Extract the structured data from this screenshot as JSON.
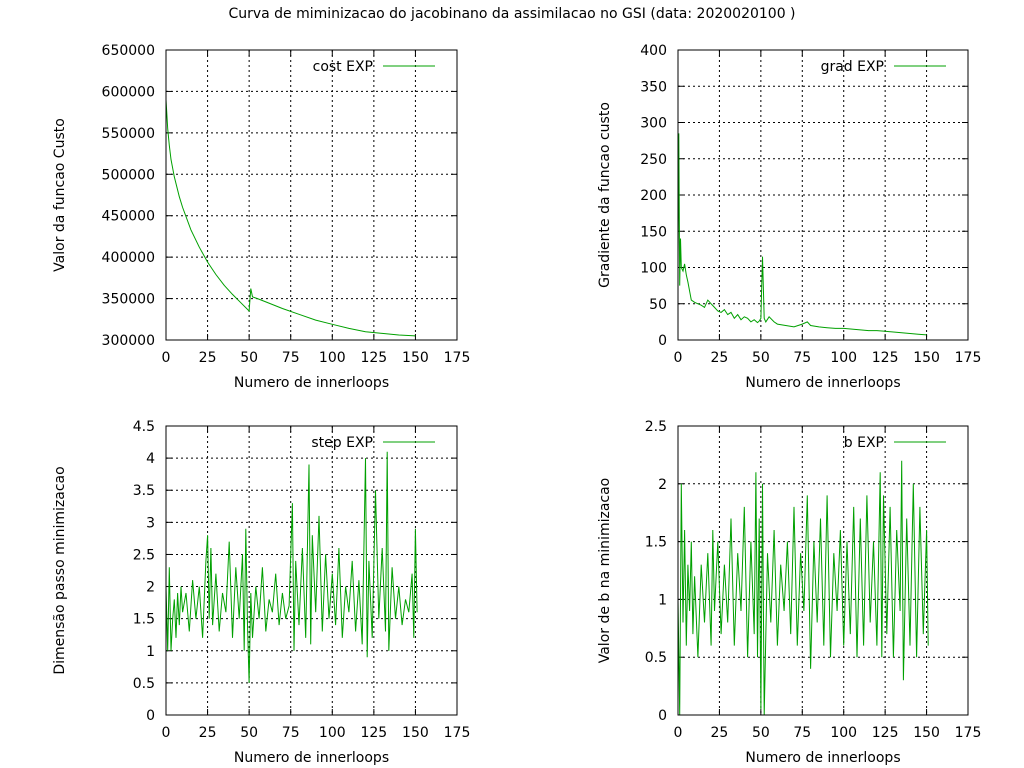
{
  "title": "Curva de miminizacao do jacobinano da assimilacao no GSI (data: 2020020100 )",
  "colors": {
    "series": "#00a000",
    "grid": "#000000",
    "axis": "#000000"
  },
  "chart_data": [
    {
      "type": "line",
      "name": "cost",
      "legend": "cost EXP",
      "legend_position": "top-right",
      "xlabel": "Numero de innerloops",
      "ylabel": "Valor da funcao Custo",
      "xlim": [
        0,
        175
      ],
      "ylim": [
        300000,
        650000
      ],
      "xticks": [
        0,
        25,
        50,
        75,
        100,
        125,
        150,
        175
      ],
      "xtick_labels": [
        "0",
        "25",
        "50",
        "75",
        "100",
        "125",
        "150",
        "175"
      ],
      "yticks": [
        300000,
        350000,
        400000,
        450000,
        500000,
        550000,
        600000,
        650000
      ],
      "ytick_labels": [
        "300000",
        "350000",
        "400000",
        "450000",
        "500000",
        "550000",
        "600000",
        "650000"
      ],
      "grid": true,
      "x": [
        0,
        1,
        2,
        3,
        5,
        8,
        10,
        15,
        20,
        25,
        30,
        35,
        40,
        45,
        50,
        51,
        52,
        55,
        60,
        70,
        80,
        90,
        100,
        110,
        120,
        130,
        140,
        150
      ],
      "y": [
        590000,
        555000,
        535000,
        518000,
        497000,
        473000,
        460000,
        433000,
        412000,
        394000,
        379000,
        366000,
        355000,
        345000,
        335000,
        362000,
        352000,
        350000,
        346000,
        338000,
        331000,
        324000,
        319000,
        314000,
        310000,
        308000,
        306000,
        305000
      ]
    },
    {
      "type": "line",
      "name": "grad",
      "legend": "grad EXP",
      "legend_position": "top-right",
      "xlabel": "Numero de innerloops",
      "ylabel": "Gradiente da funcao custo",
      "xlim": [
        0,
        175
      ],
      "ylim": [
        0,
        400
      ],
      "xticks": [
        0,
        25,
        50,
        75,
        100,
        125,
        150,
        175
      ],
      "xtick_labels": [
        "0",
        "25",
        "50",
        "75",
        "100",
        "125",
        "150",
        "175"
      ],
      "yticks": [
        0,
        50,
        100,
        150,
        200,
        250,
        300,
        350,
        400
      ],
      "ytick_labels": [
        "0",
        "50",
        "100",
        "150",
        "200",
        "250",
        "300",
        "350",
        "400"
      ],
      "grid": true,
      "x": [
        0,
        0.5,
        1,
        1.5,
        2,
        3,
        4,
        5,
        6,
        8,
        10,
        12,
        14,
        16,
        18,
        20,
        22,
        24,
        26,
        28,
        30,
        32,
        34,
        36,
        38,
        40,
        42,
        44,
        46,
        48,
        49,
        50,
        51,
        52,
        53,
        55,
        58,
        60,
        65,
        70,
        75,
        78,
        80,
        85,
        90,
        95,
        100,
        105,
        110,
        115,
        120,
        125,
        130,
        135,
        140,
        145,
        150
      ],
      "y": [
        100,
        285,
        75,
        140,
        100,
        95,
        105,
        90,
        80,
        55,
        52,
        50,
        48,
        45,
        55,
        50,
        45,
        40,
        38,
        42,
        35,
        38,
        30,
        35,
        28,
        32,
        30,
        25,
        28,
        24,
        26,
        30,
        115,
        30,
        25,
        32,
        25,
        22,
        20,
        18,
        22,
        25,
        20,
        18,
        17,
        16,
        16,
        15,
        14,
        13,
        13,
        12,
        11,
        10,
        9,
        8,
        7
      ]
    },
    {
      "type": "line",
      "name": "step",
      "legend": "step EXP",
      "legend_position": "top-right",
      "xlabel": "Numero de innerloops",
      "ylabel": "Dimensão passo minimizacao",
      "xlim": [
        0,
        175
      ],
      "ylim": [
        0,
        4.5
      ],
      "xticks": [
        0,
        25,
        50,
        75,
        100,
        125,
        150,
        175
      ],
      "xtick_labels": [
        "0",
        "25",
        "50",
        "75",
        "100",
        "125",
        "150",
        "175"
      ],
      "yticks": [
        0,
        0.5,
        1,
        1.5,
        2,
        2.5,
        3,
        3.5,
        4,
        4.5
      ],
      "ytick_labels": [
        "0",
        "0.5",
        "1",
        "1.5",
        "2",
        "2.5",
        "3",
        "3.5",
        "4",
        "4.5"
      ],
      "grid": true,
      "x": [
        0,
        1,
        2,
        3,
        4,
        5,
        6,
        7,
        8,
        9,
        10,
        12,
        14,
        16,
        18,
        20,
        22,
        24,
        25,
        26,
        27,
        28,
        30,
        32,
        34,
        36,
        38,
        40,
        42,
        44,
        46,
        47,
        48,
        49,
        50,
        51,
        52,
        54,
        56,
        58,
        60,
        62,
        64,
        66,
        68,
        70,
        72,
        74,
        76,
        77,
        78,
        80,
        82,
        84,
        86,
        87,
        88,
        90,
        92,
        94,
        96,
        98,
        100,
        102,
        104,
        106,
        108,
        110,
        112,
        114,
        116,
        118,
        120,
        121,
        122,
        124,
        126,
        128,
        130,
        132,
        133,
        134,
        136,
        138,
        140,
        142,
        144,
        146,
        148,
        149,
        150,
        151
      ],
      "y": [
        2.0,
        1.0,
        2.3,
        1.0,
        1.5,
        1.8,
        1.2,
        1.9,
        1.4,
        2.0,
        1.6,
        1.9,
        1.3,
        2.1,
        1.5,
        2.0,
        1.2,
        2.4,
        2.8,
        1.5,
        2.6,
        1.4,
        2.2,
        1.3,
        1.9,
        1.6,
        2.7,
        1.2,
        2.3,
        1.5,
        2.5,
        1.0,
        2.9,
        1.4,
        0.5,
        1.9,
        1.2,
        2.0,
        1.5,
        2.3,
        1.3,
        1.8,
        1.6,
        2.2,
        1.4,
        1.9,
        1.5,
        1.7,
        3.3,
        1.0,
        2.4,
        1.4,
        2.6,
        1.2,
        3.9,
        1.1,
        2.8,
        1.6,
        3.1,
        1.3,
        2.5,
        1.5,
        2.2,
        1.4,
        2.6,
        1.2,
        2.0,
        1.6,
        2.4,
        1.3,
        2.1,
        1.1,
        4.0,
        0.9,
        2.4,
        1.2,
        3.5,
        1.5,
        2.6,
        1.3,
        4.1,
        1.0,
        2.3,
        1.5,
        2.0,
        1.4,
        1.8,
        1.6,
        2.2,
        1.2,
        2.9,
        1.6
      ]
    },
    {
      "type": "line",
      "name": "b",
      "legend": "b EXP",
      "legend_position": "top-right",
      "xlabel": "Numero de innerloops",
      "ylabel": "Valor de b na minimizacao",
      "xlim": [
        0,
        175
      ],
      "ylim": [
        0,
        2.5
      ],
      "xticks": [
        0,
        25,
        50,
        75,
        100,
        125,
        150,
        175
      ],
      "xtick_labels": [
        "0",
        "25",
        "50",
        "75",
        "100",
        "125",
        "150",
        "175"
      ],
      "yticks": [
        0,
        0.5,
        1,
        1.5,
        2,
        2.5
      ],
      "ytick_labels": [
        "0",
        "0.5",
        "1",
        "1.5",
        "2",
        "2.5"
      ],
      "grid": true,
      "x": [
        0,
        1,
        2,
        3,
        4,
        5,
        6,
        7,
        8,
        9,
        10,
        12,
        14,
        16,
        18,
        20,
        21,
        22,
        24,
        26,
        28,
        30,
        32,
        34,
        36,
        38,
        40,
        42,
        44,
        46,
        47,
        48,
        49,
        50,
        51,
        52,
        54,
        56,
        58,
        60,
        62,
        64,
        66,
        68,
        70,
        72,
        74,
        76,
        78,
        80,
        82,
        84,
        86,
        88,
        90,
        92,
        94,
        96,
        98,
        100,
        102,
        104,
        106,
        108,
        110,
        112,
        114,
        116,
        118,
        120,
        122,
        123,
        124,
        126,
        128,
        130,
        132,
        134,
        135,
        136,
        138,
        140,
        142,
        144,
        146,
        148,
        150,
        151
      ],
      "y": [
        1.0,
        0.0,
        2.0,
        0.8,
        1.6,
        0.6,
        1.3,
        0.9,
        1.5,
        0.7,
        1.2,
        0.5,
        1.3,
        0.8,
        1.4,
        0.6,
        1.6,
        0.9,
        1.5,
        0.7,
        1.3,
        0.8,
        1.7,
        0.6,
        1.4,
        0.9,
        1.8,
        0.5,
        1.5,
        0.7,
        2.1,
        0.5,
        1.7,
        0.05,
        2.0,
        0.0,
        1.4,
        0.8,
        1.6,
        0.6,
        1.3,
        0.9,
        1.5,
        0.7,
        1.8,
        0.6,
        1.4,
        0.9,
        1.9,
        0.4,
        1.5,
        0.8,
        1.7,
        0.6,
        1.9,
        0.5,
        1.4,
        0.9,
        1.6,
        0.6,
        1.5,
        0.7,
        1.8,
        0.5,
        1.7,
        0.6,
        1.9,
        0.8,
        1.5,
        0.6,
        2.1,
        0.5,
        1.9,
        0.7,
        1.8,
        0.5,
        1.6,
        0.9,
        2.2,
        0.3,
        1.7,
        0.6,
        2.0,
        0.5,
        1.8,
        0.7,
        1.6,
        0.6
      ]
    }
  ]
}
